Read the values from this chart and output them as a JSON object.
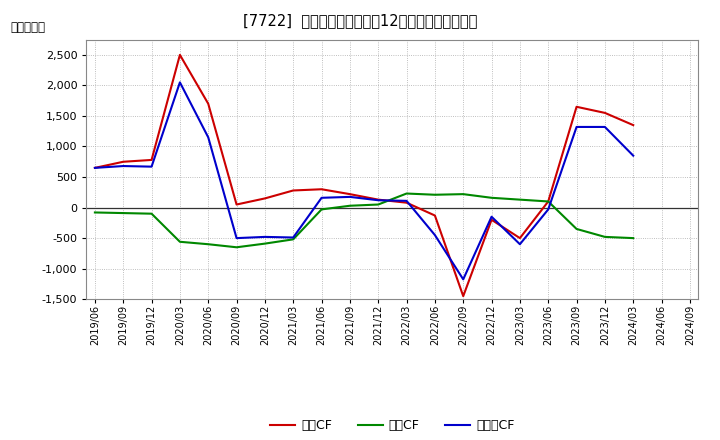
{
  "title": "[7722]  キャッシュフローの12か月移動合計の推移",
  "ylabel": "（百万円）",
  "background_color": "#ffffff",
  "plot_bg_color": "#ffffff",
  "grid_color": "#aaaaaa",
  "dates": [
    "2019-06",
    "2019-09",
    "2019-12",
    "2020-03",
    "2020-06",
    "2020-09",
    "2020-12",
    "2021-03",
    "2021-06",
    "2021-09",
    "2021-12",
    "2022-03",
    "2022-06",
    "2022-09",
    "2022-12",
    "2023-03",
    "2023-06",
    "2023-09",
    "2023-12",
    "2024-03",
    "2024-06",
    "2024-09"
  ],
  "xtick_labels": [
    "2019/06",
    "2019/09",
    "2019/12",
    "2020/03",
    "2020/06",
    "2020/09",
    "2020/12",
    "2021/03",
    "2021/06",
    "2021/09",
    "2021/12",
    "2022/03",
    "2022/06",
    "2022/09",
    "2022/12",
    "2023/03",
    "2023/06",
    "2023/09",
    "2023/12",
    "2024/03",
    "2024/06",
    "2024/09"
  ],
  "eigyo_cf": [
    650,
    750,
    780,
    2500,
    1700,
    50,
    150,
    280,
    300,
    220,
    130,
    80,
    -130,
    -1450,
    -200,
    -500,
    100,
    1650,
    1550,
    1350,
    null,
    null
  ],
  "toshi_cf": [
    -80,
    -90,
    -100,
    -560,
    -600,
    -650,
    -590,
    -520,
    -30,
    30,
    50,
    230,
    210,
    220,
    160,
    130,
    100,
    -350,
    -480,
    -500,
    null,
    null
  ],
  "free_cf": [
    650,
    680,
    670,
    2050,
    1150,
    -500,
    -480,
    -490,
    160,
    175,
    120,
    110,
    -450,
    -1175,
    -150,
    -600,
    -30,
    1320,
    1320,
    850,
    null,
    null
  ],
  "eigyo_color": "#cc0000",
  "toshi_color": "#008800",
  "free_color": "#0000cc",
  "ylim": [
    -1500,
    2750
  ],
  "yticks": [
    -1500,
    -1000,
    -500,
    0,
    500,
    1000,
    1500,
    2000,
    2500
  ],
  "legend_labels": [
    "営業CF",
    "投資CF",
    "フリーCF"
  ]
}
